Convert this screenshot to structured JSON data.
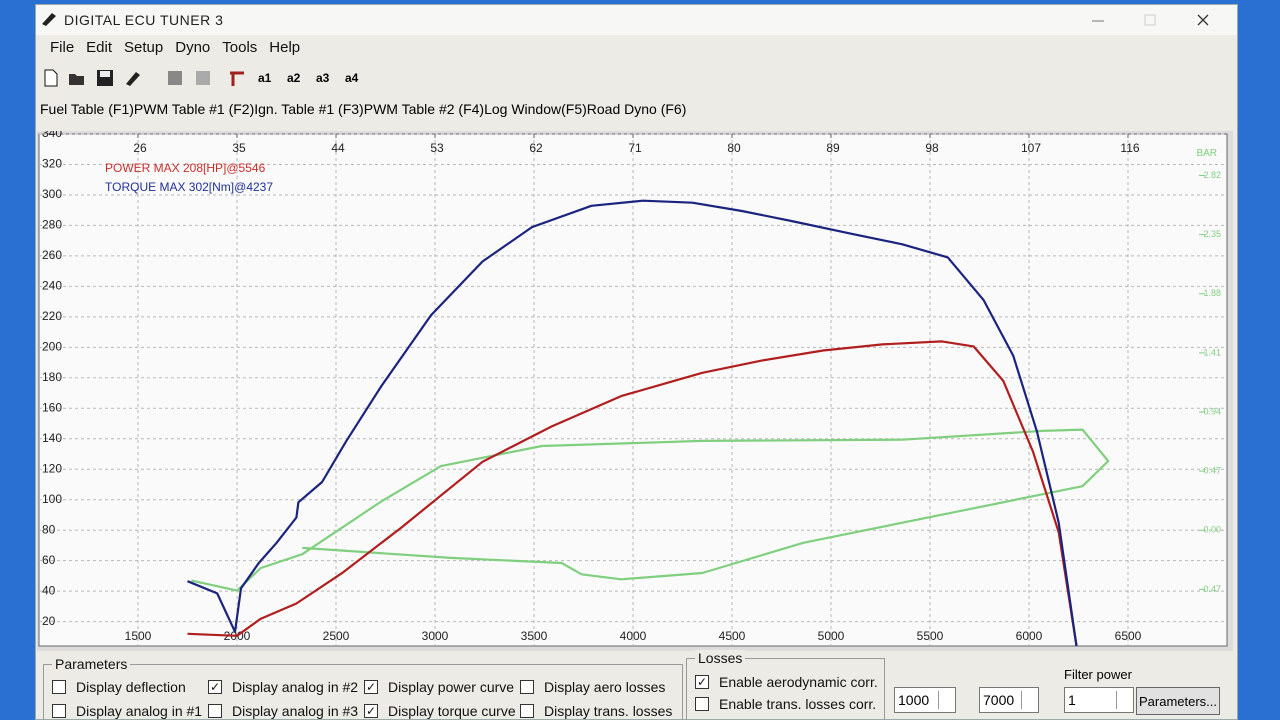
{
  "window": {
    "title": "DIGITAL ECU TUNER 3"
  },
  "menu": [
    "File",
    "Edit",
    "Setup",
    "Dyno",
    "Tools",
    "Help"
  ],
  "toolbar": {
    "buttons": [
      "a1",
      "a2",
      "a3",
      "a4"
    ]
  },
  "tabs": [
    "Fuel Table (F1)",
    "PWM Table #1 (F2)",
    "Ign. Table #1 (F3)",
    "PWM Table #2 (F4)",
    "Log Window(F5)",
    "Road Dyno (F6)"
  ],
  "chart_data": {
    "type": "line",
    "xlim": [
      1000,
      7000
    ],
    "xticks": [
      1500,
      2000,
      2500,
      3000,
      3500,
      4000,
      4500,
      5000,
      5500,
      6000,
      6500
    ],
    "x2lim": [
      17,
      125
    ],
    "x2ticks": [
      26,
      35,
      44,
      53,
      62,
      71,
      80,
      89,
      98,
      107,
      116
    ],
    "ylim": [
      4,
      340
    ],
    "yticks": [
      20,
      40,
      60,
      80,
      100,
      120,
      140,
      160,
      180,
      200,
      220,
      240,
      260,
      280,
      300,
      320,
      340
    ],
    "y2lim": [
      -0.92,
      3.15
    ],
    "y2ticks": [
      -0.47,
      {
        "value": 0,
        "label": "0.00"
      },
      0.47,
      0.94,
      1.41,
      1.88,
      2.35,
      2.82
    ],
    "y2label": "BAR",
    "grid": true,
    "annotations": [
      {
        "text": "POWER MAX 208[HP]@5546",
        "color": "#c8302a"
      },
      {
        "text": "TORQUE MAX 302[Nm]@4237",
        "color": "#1f2f9a"
      }
    ],
    "series": [
      {
        "color": "#7fcf7f",
        "axis": "y2",
        "x": [
          1770,
          2000,
          2120,
          2330,
          2730,
          3030,
          3540,
          4350,
          5360,
          6070,
          6270,
          6400,
          6270,
          5610,
          4860,
          4350,
          3940,
          3740,
          3640,
          3080,
          2330
        ],
        "values": [
          -0.4,
          -0.48,
          -0.3,
          -0.19,
          0.23,
          0.51,
          0.67,
          0.71,
          0.72,
          0.79,
          0.8,
          0.55,
          0.35,
          0.14,
          -0.1,
          -0.34,
          -0.39,
          -0.35,
          -0.26,
          -0.22,
          -0.14
        ]
      },
      {
        "color": "#b01e1e",
        "x": [
          1750,
          2000,
          2120,
          2300,
          2530,
          2830,
          3240,
          3590,
          3940,
          4350,
          4650,
          4960,
          5260,
          5560,
          5720,
          5870,
          6020,
          6150,
          6240
        ],
        "values": [
          12.0,
          10.7,
          21.9,
          31.9,
          51.8,
          81.7,
          124.9,
          148.1,
          168.0,
          183.3,
          191.3,
          197.9,
          201.9,
          203.9,
          200.6,
          178.0,
          131.5,
          78.6,
          4
        ]
      },
      {
        "color": "#1a237e",
        "x": [
          1750,
          1900,
          1990,
          2020,
          2110,
          2200,
          2300,
          2310,
          2430,
          2550,
          2730,
          2980,
          3240,
          3490,
          3790,
          4050,
          4300,
          4550,
          4800,
          5110,
          5360,
          5590,
          5770,
          5920,
          6040,
          6150,
          6240
        ],
        "values": [
          46.5,
          38.5,
          13.3,
          41.8,
          58.5,
          71.7,
          88.3,
          98.3,
          111.6,
          138.1,
          174.7,
          221.1,
          256.3,
          278.9,
          292.9,
          296.2,
          294.9,
          289.5,
          282.9,
          274.3,
          267.6,
          259.0,
          231.1,
          194.6,
          144.8,
          85.0,
          4
        ]
      }
    ]
  },
  "parameters": {
    "title": "Parameters",
    "options": [
      {
        "label": "Display deflection",
        "checked": false
      },
      {
        "label": "Display analog in #2",
        "checked": true
      },
      {
        "label": "Display power curve",
        "checked": true
      },
      {
        "label": "Display aero losses",
        "checked": false
      },
      {
        "label": "Display analog in #1",
        "checked": false
      },
      {
        "label": "Display analog in #3",
        "checked": false
      },
      {
        "label": "Display torque curve",
        "checked": true
      },
      {
        "label": "Display trans. losses",
        "checked": false
      }
    ]
  },
  "losses": {
    "title": "Losses",
    "options": [
      {
        "label": "Enable aerodynamic corr.",
        "checked": true
      },
      {
        "label": "Enable trans. losses corr.",
        "checked": false
      }
    ]
  },
  "range": {
    "from": "1000",
    "to": "7000"
  },
  "filter": {
    "label": "Filter power",
    "value": "1"
  },
  "button": "Parameters..."
}
